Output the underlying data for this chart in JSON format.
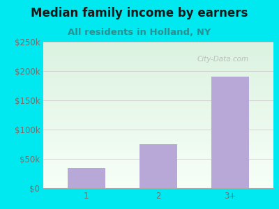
{
  "title": "Median family income by earners",
  "subtitle": "All residents in Holland, NY",
  "categories": [
    "1",
    "2",
    "3+"
  ],
  "values": [
    35000,
    75000,
    190000
  ],
  "bar_color": "#b8a8d8",
  "title_color": "#1a1a1a",
  "subtitle_color": "#2a9090",
  "background_color": "#00e8f0",
  "tick_color": "#707070",
  "ylim": [
    0,
    250000
  ],
  "yticks": [
    0,
    50000,
    100000,
    150000,
    200000,
    250000
  ],
  "watermark": "City-Data.com",
  "title_fontsize": 12,
  "subtitle_fontsize": 9.5,
  "tick_fontsize": 8.5
}
